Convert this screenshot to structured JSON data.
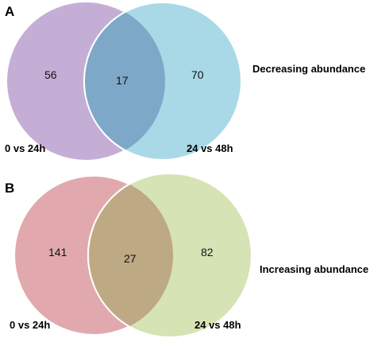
{
  "panels": [
    {
      "letter": "A",
      "title": "Decreasing abundance",
      "left_set": {
        "label": "0 vs 24h",
        "only": "56",
        "color": "#c4aed6"
      },
      "right_set": {
        "label": "24 vs 48h",
        "only": "70",
        "color": "#a9d9e6"
      },
      "overlap": {
        "count": "17",
        "color": "#7ea8c8"
      }
    },
    {
      "letter": "B",
      "title": "Increasing abundance",
      "left_set": {
        "label": "0 vs 24h",
        "only": "141",
        "color": "#e1a9ad"
      },
      "right_set": {
        "label": "24 vs 48h",
        "only": "82",
        "color": "#d6e3b4"
      },
      "overlap": {
        "count": "27",
        "color": "#bda983"
      }
    }
  ]
}
